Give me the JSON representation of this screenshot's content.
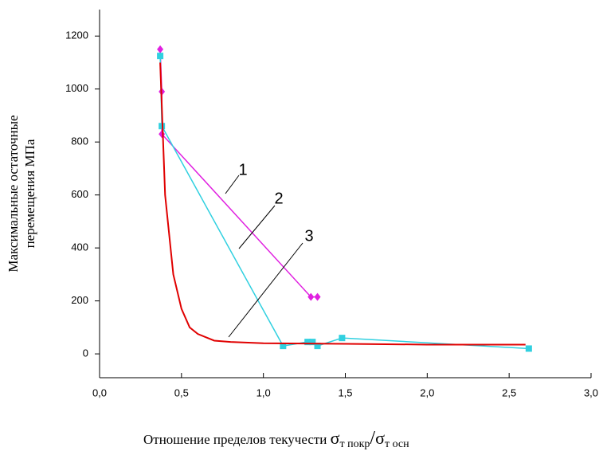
{
  "chart_data": {
    "type": "line",
    "xlim": [
      0,
      3.0
    ],
    "ylim": [
      -90,
      1300
    ],
    "xticks": [
      {
        "value": 0,
        "label": "0,0"
      },
      {
        "value": 0.5,
        "label": "0,5"
      },
      {
        "value": 1.0,
        "label": "1,0"
      },
      {
        "value": 1.5,
        "label": "1,5"
      },
      {
        "value": 2.0,
        "label": "2,0"
      },
      {
        "value": 2.5,
        "label": "2,5"
      },
      {
        "value": 3.0,
        "label": "3,0"
      }
    ],
    "yticks": [
      0,
      200,
      400,
      600,
      800,
      1000,
      1200
    ],
    "y_label": [
      "Максимальные остаточные",
      "перемещения МПа"
    ],
    "x_label": {
      "text": "Отношение пределов текучести",
      "sigma": "σ",
      "sub1": "т покр",
      "slash": "/",
      "sub2": "т осн"
    },
    "annotations": [
      "1",
      "2",
      "3"
    ],
    "series": [
      {
        "color": "#e020e0",
        "marker": "diamond",
        "x": [
          0.37,
          0.38,
          0.38,
          1.29,
          1.33
        ],
        "values": [
          1150,
          990,
          830,
          215,
          215
        ]
      },
      {
        "color": "#30d0e0",
        "marker": "square",
        "x": [
          0.37,
          0.38,
          1.12,
          1.27,
          1.3,
          1.33,
          1.48,
          2.62
        ],
        "values": [
          1125,
          860,
          30,
          45,
          45,
          30,
          60,
          20
        ]
      },
      {
        "color": "#e00000",
        "marker": "none",
        "x": [
          0.37,
          0.4,
          0.45,
          0.5,
          0.55,
          0.6,
          0.7,
          0.8,
          1.0,
          1.5,
          2.0,
          2.6
        ],
        "values": [
          1100,
          600,
          300,
          170,
          100,
          75,
          50,
          45,
          40,
          38,
          35,
          35
        ]
      }
    ]
  }
}
